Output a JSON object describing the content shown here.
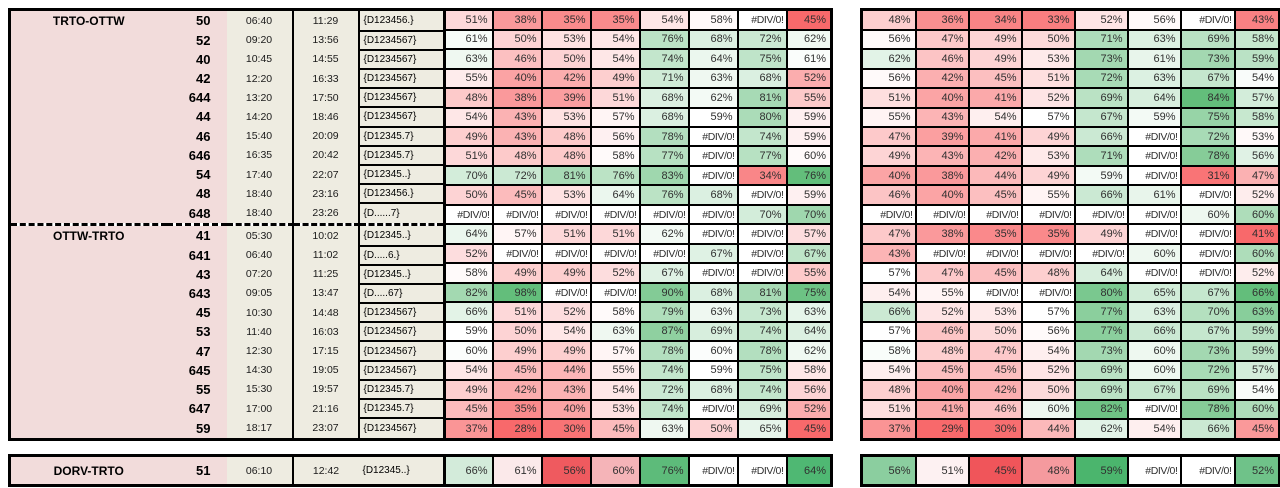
{
  "colors": {
    "route_fill": "#f2dcdb",
    "time_fill": "#eeece1",
    "error_fill": "#ffffff",
    "grid_line": "#000000",
    "heat_low": "#f8696b",
    "heat_mid": "#ffffff",
    "heat_high": "#63be7b"
  },
  "heatmap_scales": {
    "left_main": {
      "min": 28,
      "mid": 59,
      "max": 98
    },
    "left_avg": {
      "min": 45,
      "mid": 60.5,
      "max": 76
    },
    "right_main": {
      "min": 29,
      "mid": 57,
      "max": 84
    },
    "right_avg": {
      "min": 41,
      "mid": 53.5,
      "max": 66
    }
  },
  "error_text": "#DIV/0!",
  "main": {
    "rows": [
      {
        "route": "TRTO-OTTW",
        "train": "50",
        "dep": "06:40",
        "arr": "11:29",
        "pattern": "{D123456.}",
        "left": [
          "51%",
          "38%",
          "35%",
          "35%",
          "54%",
          "58%",
          "#DIV/0!",
          "45%"
        ],
        "right": [
          "48%",
          "36%",
          "34%",
          "33%",
          "52%",
          "56%",
          "#DIV/0!",
          "43%"
        ]
      },
      {
        "route": "",
        "train": "52",
        "dep": "09:20",
        "arr": "13:56",
        "pattern": "{D1234567}",
        "left": [
          "61%",
          "50%",
          "53%",
          "54%",
          "76%",
          "68%",
          "72%",
          "62%"
        ],
        "right": [
          "56%",
          "47%",
          "49%",
          "50%",
          "71%",
          "63%",
          "69%",
          "58%"
        ]
      },
      {
        "route": "",
        "train": "40",
        "dep": "10:45",
        "arr": "14:55",
        "pattern": "{D1234567}",
        "left": [
          "63%",
          "46%",
          "50%",
          "54%",
          "74%",
          "64%",
          "75%",
          "61%"
        ],
        "right": [
          "62%",
          "46%",
          "49%",
          "53%",
          "73%",
          "61%",
          "73%",
          "59%"
        ]
      },
      {
        "route": "",
        "train": "42",
        "dep": "12:20",
        "arr": "16:33",
        "pattern": "{D1234567}",
        "left": [
          "55%",
          "40%",
          "42%",
          "49%",
          "71%",
          "63%",
          "68%",
          "52%"
        ],
        "right": [
          "56%",
          "42%",
          "45%",
          "51%",
          "72%",
          "63%",
          "67%",
          "54%"
        ]
      },
      {
        "route": "",
        "train": "644",
        "dep": "13:20",
        "arr": "17:50",
        "pattern": "{D1234567}",
        "left": [
          "48%",
          "38%",
          "39%",
          "51%",
          "68%",
          "62%",
          "81%",
          "55%"
        ],
        "right": [
          "51%",
          "40%",
          "41%",
          "52%",
          "69%",
          "64%",
          "84%",
          "57%"
        ]
      },
      {
        "route": "",
        "train": "44",
        "dep": "14:20",
        "arr": "18:46",
        "pattern": "{D1234567}",
        "left": [
          "54%",
          "43%",
          "53%",
          "57%",
          "68%",
          "59%",
          "80%",
          "59%"
        ],
        "right": [
          "55%",
          "43%",
          "54%",
          "57%",
          "67%",
          "59%",
          "75%",
          "58%"
        ]
      },
      {
        "route": "",
        "train": "46",
        "dep": "15:40",
        "arr": "20:09",
        "pattern": "{D12345.7}",
        "left": [
          "49%",
          "43%",
          "48%",
          "56%",
          "78%",
          "#DIV/0!",
          "74%",
          "59%"
        ],
        "right": [
          "47%",
          "39%",
          "41%",
          "49%",
          "66%",
          "#DIV/0!",
          "72%",
          "53%"
        ]
      },
      {
        "route": "",
        "train": "646",
        "dep": "16:35",
        "arr": "20:42",
        "pattern": "{D12345.7}",
        "left": [
          "51%",
          "48%",
          "48%",
          "58%",
          "77%",
          "#DIV/0!",
          "77%",
          "60%"
        ],
        "right": [
          "49%",
          "43%",
          "42%",
          "53%",
          "71%",
          "#DIV/0!",
          "78%",
          "56%"
        ]
      },
      {
        "route": "",
        "train": "54",
        "dep": "17:40",
        "arr": "22:07",
        "pattern": "{D12345..}",
        "left": [
          "70%",
          "72%",
          "81%",
          "76%",
          "83%",
          "#DIV/0!",
          "34%",
          "76%"
        ],
        "right": [
          "40%",
          "38%",
          "44%",
          "49%",
          "59%",
          "#DIV/0!",
          "31%",
          "47%"
        ]
      },
      {
        "route": "",
        "train": "48",
        "dep": "18:40",
        "arr": "23:16",
        "pattern": "{D123456.}",
        "left": [
          "50%",
          "45%",
          "53%",
          "64%",
          "76%",
          "68%",
          "#DIV/0!",
          "59%"
        ],
        "right": [
          "46%",
          "40%",
          "45%",
          "55%",
          "66%",
          "61%",
          "#DIV/0!",
          "52%"
        ]
      },
      {
        "route": "",
        "train": "648",
        "dep": "18:40",
        "arr": "23:26",
        "pattern": "{D......7}",
        "left": [
          "#DIV/0!",
          "#DIV/0!",
          "#DIV/0!",
          "#DIV/0!",
          "#DIV/0!",
          "#DIV/0!",
          "70%",
          "70%"
        ],
        "right": [
          "#DIV/0!",
          "#DIV/0!",
          "#DIV/0!",
          "#DIV/0!",
          "#DIV/0!",
          "#DIV/0!",
          "60%",
          "60%"
        ]
      },
      {
        "route": "OTTW-TRTO",
        "separator": true,
        "train": "41",
        "dep": "05:30",
        "arr": "10:02",
        "pattern": "{D12345..}",
        "left": [
          "64%",
          "57%",
          "51%",
          "51%",
          "62%",
          "#DIV/0!",
          "#DIV/0!",
          "57%"
        ],
        "right": [
          "47%",
          "38%",
          "35%",
          "35%",
          "49%",
          "#DIV/0!",
          "#DIV/0!",
          "41%"
        ]
      },
      {
        "route": "",
        "train": "641",
        "dep": "06:40",
        "arr": "11:02",
        "pattern": "{D.....6.}",
        "left": [
          "52%",
          "#DIV/0!",
          "#DIV/0!",
          "#DIV/0!",
          "#DIV/0!",
          "67%",
          "#DIV/0!",
          "67%"
        ],
        "right": [
          "43%",
          "#DIV/0!",
          "#DIV/0!",
          "#DIV/0!",
          "#DIV/0!",
          "60%",
          "#DIV/0!",
          "60%"
        ]
      },
      {
        "route": "",
        "train": "43",
        "dep": "07:20",
        "arr": "11:25",
        "pattern": "{D12345..}",
        "left": [
          "58%",
          "49%",
          "49%",
          "52%",
          "67%",
          "#DIV/0!",
          "#DIV/0!",
          "55%"
        ],
        "right": [
          "57%",
          "47%",
          "45%",
          "48%",
          "64%",
          "#DIV/0!",
          "#DIV/0!",
          "52%"
        ]
      },
      {
        "route": "",
        "train": "643",
        "dep": "09:05",
        "arr": "13:47",
        "pattern": "{D.....67}",
        "left": [
          "82%",
          "98%",
          "#DIV/0!",
          "#DIV/0!",
          "90%",
          "68%",
          "81%",
          "75%"
        ],
        "right": [
          "54%",
          "55%",
          "#DIV/0!",
          "#DIV/0!",
          "80%",
          "65%",
          "67%",
          "66%"
        ]
      },
      {
        "route": "",
        "train": "45",
        "dep": "10:30",
        "arr": "14:48",
        "pattern": "{D1234567}",
        "left": [
          "66%",
          "51%",
          "52%",
          "58%",
          "79%",
          "63%",
          "73%",
          "63%"
        ],
        "right": [
          "66%",
          "52%",
          "53%",
          "57%",
          "77%",
          "63%",
          "70%",
          "63%"
        ]
      },
      {
        "route": "",
        "train": "53",
        "dep": "11:40",
        "arr": "16:03",
        "pattern": "{D1234567}",
        "left": [
          "59%",
          "50%",
          "54%",
          "63%",
          "87%",
          "69%",
          "74%",
          "64%"
        ],
        "right": [
          "57%",
          "46%",
          "50%",
          "56%",
          "77%",
          "66%",
          "67%",
          "59%"
        ]
      },
      {
        "route": "",
        "train": "47",
        "dep": "12:30",
        "arr": "17:15",
        "pattern": "{D1234567}",
        "left": [
          "60%",
          "49%",
          "49%",
          "57%",
          "78%",
          "60%",
          "78%",
          "62%"
        ],
        "right": [
          "58%",
          "48%",
          "47%",
          "54%",
          "73%",
          "60%",
          "73%",
          "59%"
        ]
      },
      {
        "route": "",
        "train": "645",
        "dep": "14:30",
        "arr": "19:05",
        "pattern": "{D1234567}",
        "left": [
          "54%",
          "45%",
          "44%",
          "55%",
          "74%",
          "59%",
          "75%",
          "58%"
        ],
        "right": [
          "54%",
          "45%",
          "45%",
          "52%",
          "69%",
          "60%",
          "72%",
          "57%"
        ]
      },
      {
        "route": "",
        "train": "55",
        "dep": "15:30",
        "arr": "19:57",
        "pattern": "{D12345.7}",
        "left": [
          "49%",
          "42%",
          "43%",
          "54%",
          "72%",
          "68%",
          "74%",
          "56%"
        ],
        "right": [
          "48%",
          "40%",
          "42%",
          "50%",
          "69%",
          "67%",
          "69%",
          "54%"
        ]
      },
      {
        "route": "",
        "train": "647",
        "dep": "17:00",
        "arr": "21:16",
        "pattern": "{D12345.7}",
        "left": [
          "45%",
          "35%",
          "40%",
          "53%",
          "74%",
          "#DIV/0!",
          "69%",
          "52%"
        ],
        "right": [
          "51%",
          "41%",
          "46%",
          "60%",
          "82%",
          "#DIV/0!",
          "78%",
          "60%"
        ]
      },
      {
        "route": "",
        "train": "59",
        "dep": "18:17",
        "arr": "23:07",
        "pattern": "{D1234567}",
        "left": [
          "37%",
          "28%",
          "30%",
          "45%",
          "63%",
          "50%",
          "65%",
          "45%"
        ],
        "right": [
          "37%",
          "29%",
          "30%",
          "44%",
          "62%",
          "54%",
          "66%",
          "45%"
        ]
      }
    ]
  },
  "bottom": {
    "route": "DORV-TRTO",
    "train": "51",
    "dep": "06:10",
    "arr": "12:42",
    "pattern": "{D12345..}",
    "left": [
      "66%",
      "61%",
      "56%",
      "60%",
      "76%",
      "#DIV/0!",
      "#DIV/0!",
      "64%"
    ],
    "right": [
      "56%",
      "51%",
      "45%",
      "48%",
      "59%",
      "#DIV/0!",
      "#DIV/0!",
      "52%"
    ],
    "left_colors": [
      "#d3ebda",
      "#fbe9ea",
      "#ef5a5f",
      "#f5b4b8",
      "#5dbb7a",
      "#ffffff",
      "#ffffff",
      "#4fb873"
    ],
    "right_colors": [
      "#8bce9f",
      "#fdf1f2",
      "#f0555a",
      "#f59a9e",
      "#4bb56d",
      "#ffffff",
      "#ffffff",
      "#6fc289"
    ]
  }
}
